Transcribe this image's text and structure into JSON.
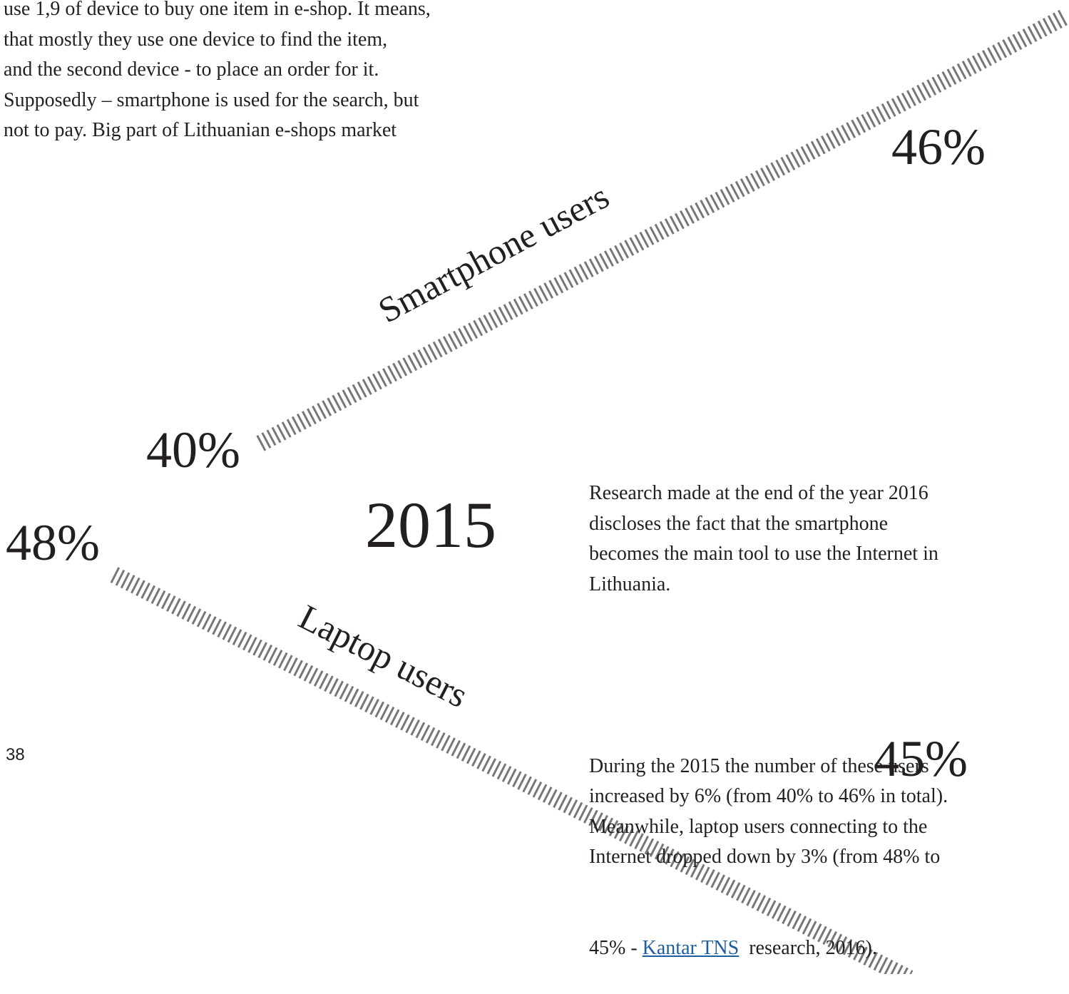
{
  "intro": {
    "lines": [
      "use 1,9 of device to buy one item in e-shop. It means,",
      "that mostly they use one device to find the item,",
      "and the second device - to place an order for it.",
      "Supposedly – smartphone is used for the search, but",
      "not to pay. Big part of Lithuanian e-shops market"
    ]
  },
  "infographic": {
    "year": "2015",
    "smartphone": {
      "label": "Smartphone users",
      "start": "40%",
      "end": "46%"
    },
    "laptop": {
      "label": "Laptop users",
      "start": "48%",
      "end": "45%"
    }
  },
  "body": {
    "paragraph1": [
      "Research made at the end of the year 2016",
      "discloses the fact that the smartphone",
      "becomes the main tool to use the Internet in",
      "Lithuania."
    ],
    "paragraph2": [
      "During the 2015 the number of these users",
      "increased by 6% (from 40% to 46% in total).",
      "Meanwhile, laptop users connecting to the",
      "Internet dropped down by 3% (from 48% to"
    ],
    "last_line": {
      "before": "45% - ",
      "link": "Kantar TNS",
      "after": "  research, 2016)."
    }
  },
  "page_number": "38"
}
